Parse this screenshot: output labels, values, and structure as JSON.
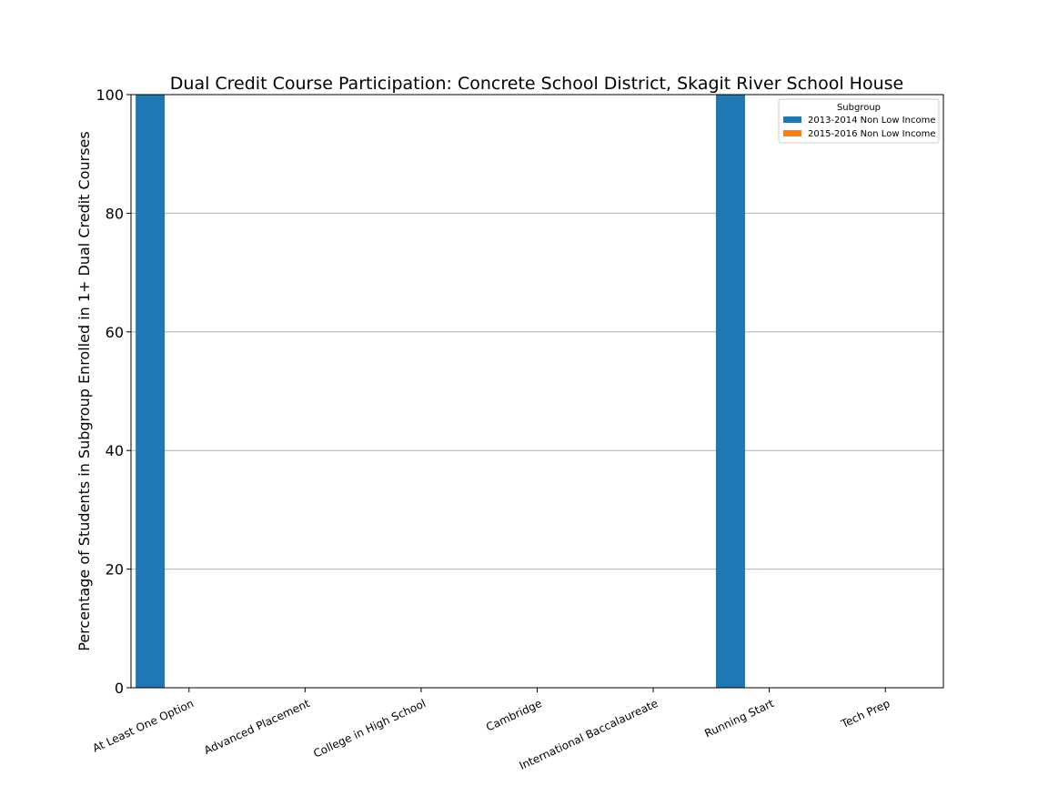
{
  "chart_data": {
    "type": "bar",
    "title": "Dual Credit Course Participation: Concrete School District, Skagit River School House",
    "xlabel": "",
    "ylabel": "Percentage of Students in Subgroup Enrolled in 1+ Dual Credit Courses",
    "ylim": [
      0,
      100
    ],
    "yticks": [
      "0",
      "20",
      "40",
      "60",
      "80",
      "100"
    ],
    "grid": "y",
    "legend_title": "Subgroup",
    "legend_position": "top-right",
    "categories": [
      "At Least One Option",
      "Advanced Placement",
      "College in High School",
      "Cambridge",
      "International Baccalaureate",
      "Running Start",
      "Tech Prep"
    ],
    "series": [
      {
        "name": "2013-2014 Non Low Income",
        "color": "#1f77b4",
        "values": [
          100,
          0,
          0,
          0,
          0,
          100,
          0
        ]
      },
      {
        "name": "2015-2016 Non Low Income",
        "color": "#ff7f0e",
        "values": [
          0,
          0,
          0,
          0,
          0,
          0,
          0
        ]
      }
    ]
  }
}
